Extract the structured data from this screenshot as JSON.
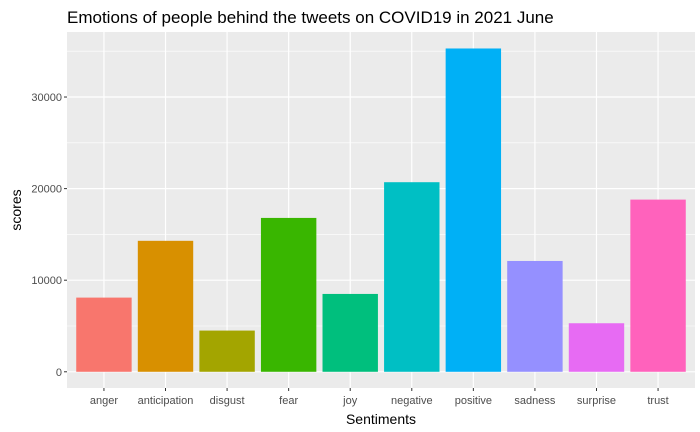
{
  "chart_data": {
    "type": "bar",
    "title": "Emotions of people behind the tweets on COVID19 in 2021 June",
    "xlabel": "Sentiments",
    "ylabel": "scores",
    "categories": [
      "anger",
      "anticipation",
      "disgust",
      "fear",
      "joy",
      "negative",
      "positive",
      "sadness",
      "surprise",
      "trust"
    ],
    "values": [
      8100,
      14300,
      4500,
      16800,
      8500,
      20700,
      35300,
      12100,
      5300,
      18800
    ],
    "colors": [
      "#F8766D",
      "#D89000",
      "#A3A500",
      "#39B600",
      "#00BF7D",
      "#00BFC4",
      "#00B0F6",
      "#9590FF",
      "#E76BF3",
      "#FF62BC"
    ],
    "yticks": [
      0,
      10000,
      20000,
      30000
    ],
    "ytick_labels": [
      "0",
      "10000",
      "20000",
      "30000"
    ],
    "ylim": [
      -1770,
      37100
    ],
    "grid": true,
    "legend": "none",
    "panel_background": "#EBEBEB",
    "grid_color": "#FFFFFF"
  }
}
